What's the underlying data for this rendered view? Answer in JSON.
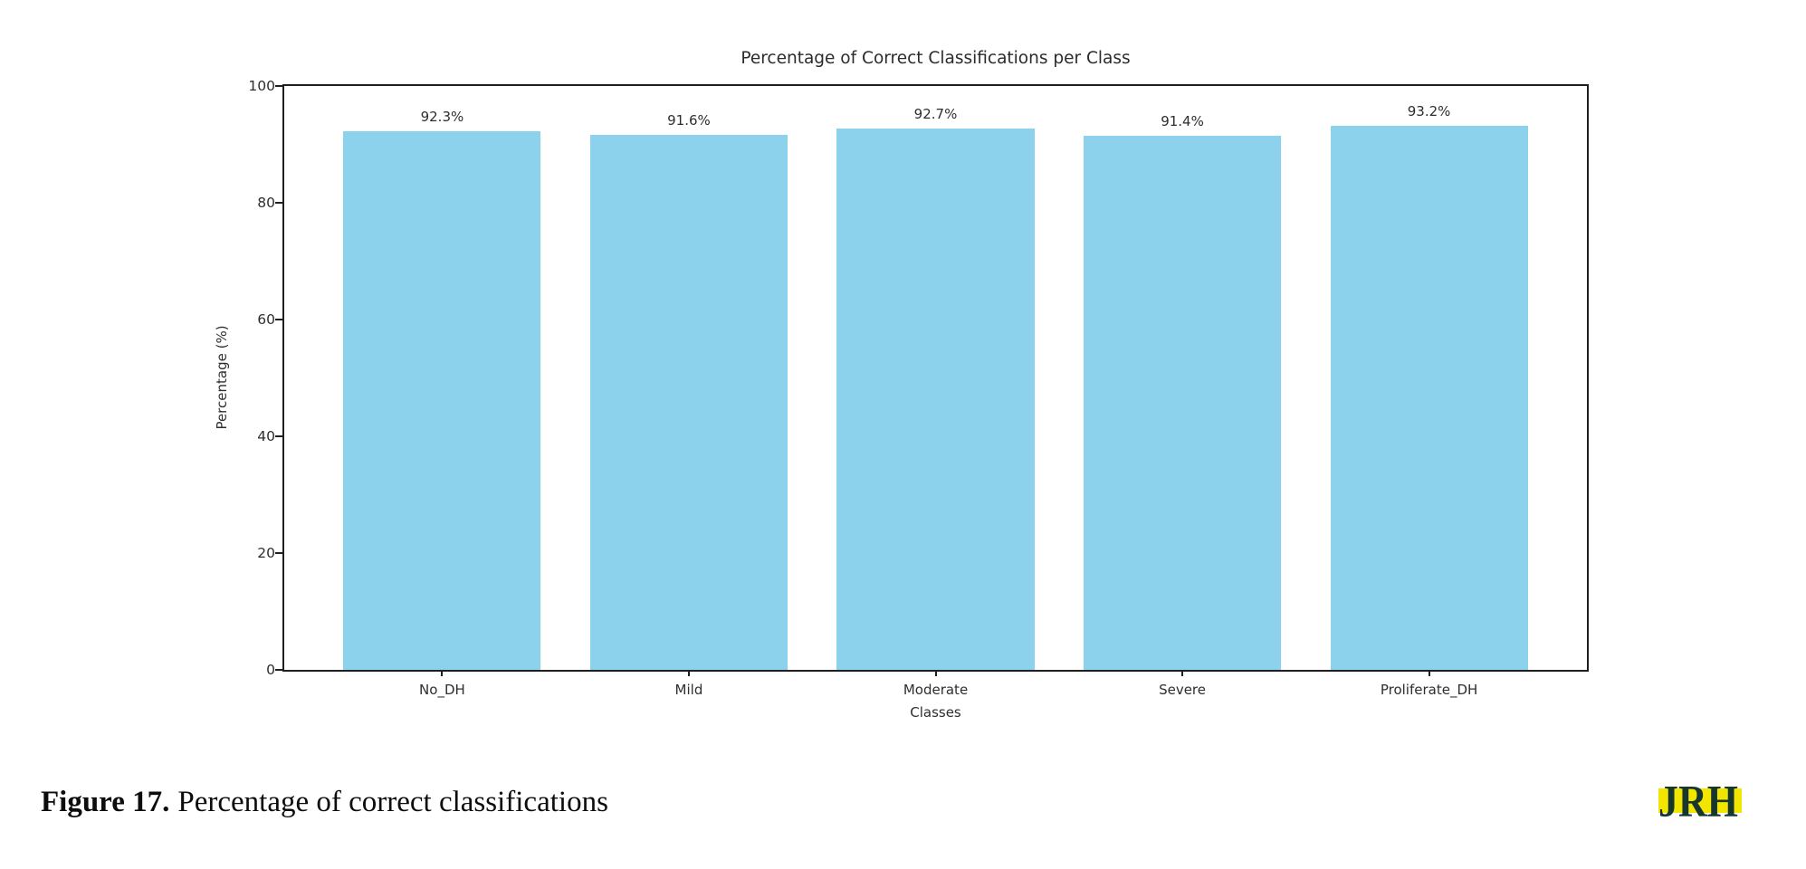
{
  "chart_data": {
    "type": "bar",
    "title": "Percentage of Correct Classifications per Class",
    "xlabel": "Classes",
    "ylabel": "Percentage (%)",
    "categories": [
      "No_DH",
      "Mild",
      "Moderate",
      "Severe",
      "Proliferate_DH"
    ],
    "values": [
      92.3,
      91.6,
      92.7,
      91.4,
      93.2
    ],
    "value_labels": [
      "92.3%",
      "91.6%",
      "92.7%",
      "91.4%",
      "93.2%"
    ],
    "ylim": [
      0,
      100
    ],
    "yticks": [
      0,
      20,
      40,
      60,
      80,
      100
    ],
    "bar_color": "#8dd2ec",
    "axis_color": "#1f1f1f",
    "grid": "off",
    "legend": "none"
  },
  "caption": {
    "label": "Figure 17.",
    "text": "Percentage of correct classifications"
  },
  "logo": {
    "text": "JRH",
    "band_color": "#f2e600",
    "text_color": "#17362e"
  }
}
